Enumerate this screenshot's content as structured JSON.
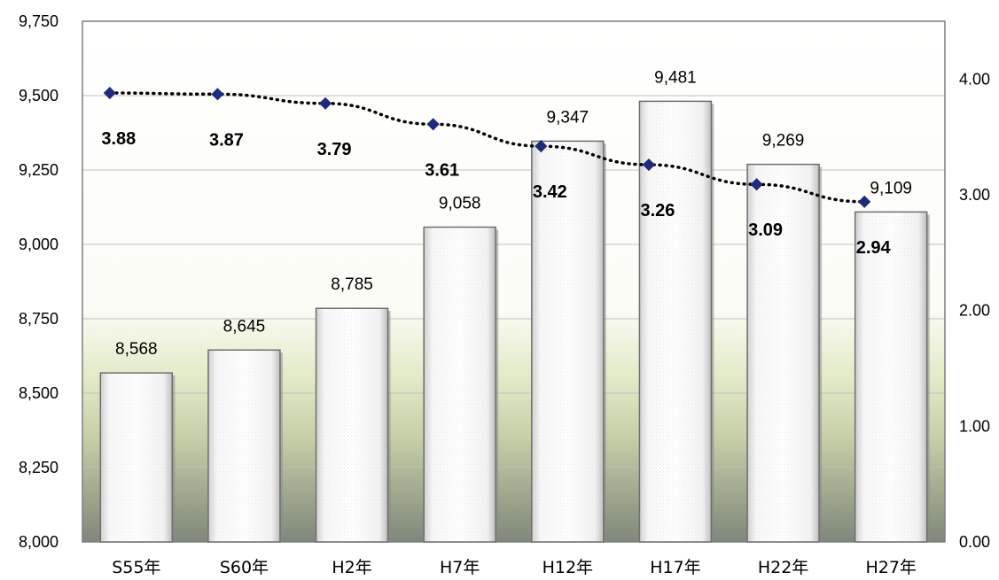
{
  "chart_data": {
    "type": "bar",
    "categories": [
      "S55年",
      "S60年",
      "H2年",
      "H7年",
      "H12年",
      "H17年",
      "H22年",
      "H27年"
    ],
    "series": [
      {
        "type": "bar",
        "axis": "left",
        "values": [
          8568,
          8645,
          8785,
          9058,
          9347,
          9481,
          9269,
          9109
        ],
        "labels": [
          "8,568",
          "8,645",
          "8,785",
          "9,058",
          "9,347",
          "9,481",
          "9,269",
          "9,109"
        ]
      },
      {
        "type": "line",
        "axis": "right",
        "style": "dotted",
        "marker": "diamond",
        "color": "#1f2a7a",
        "values": [
          3.88,
          3.87,
          3.79,
          3.61,
          3.42,
          3.26,
          3.09,
          2.94
        ],
        "labels": [
          "3.88",
          "3.87",
          "3.79",
          "3.61",
          "3.42",
          "3.26",
          "3.09",
          "2.94"
        ]
      }
    ],
    "y_left": {
      "range": [
        8000,
        9750
      ],
      "ticks": [
        "8,000",
        "8,250",
        "8,500",
        "8,750",
        "9,000",
        "9,250",
        "9,500",
        "9,750"
      ]
    },
    "y_right": {
      "range": [
        0,
        4.5
      ],
      "ticks": [
        "0.00",
        "1.00",
        "2.00",
        "3.00",
        "4.00"
      ]
    },
    "grid": true,
    "background": "gradient white to olive-green"
  }
}
